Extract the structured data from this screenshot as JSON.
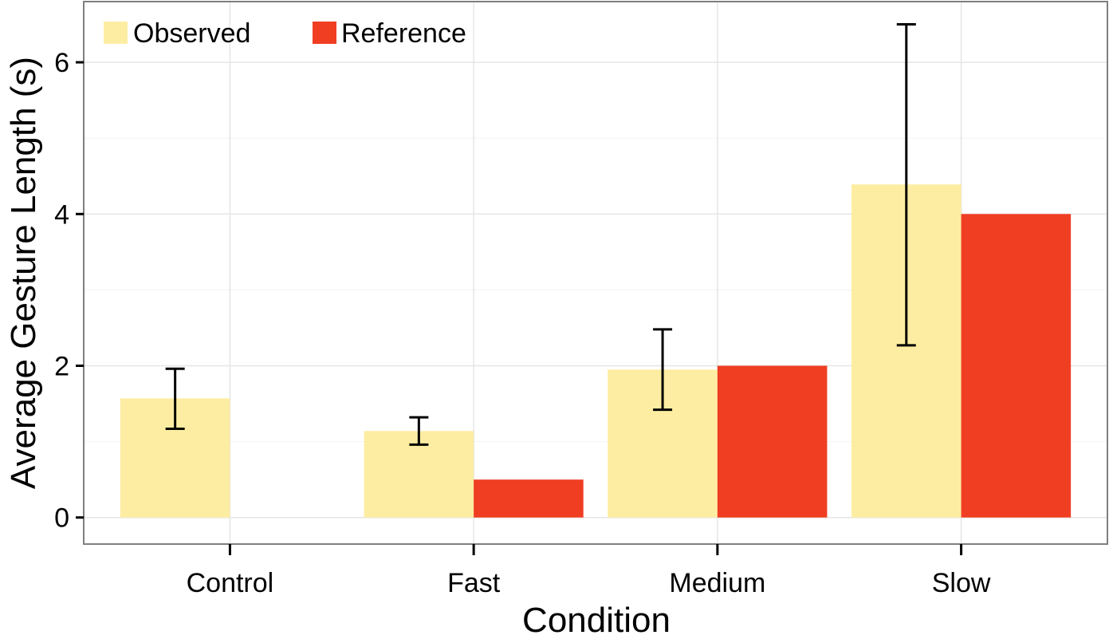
{
  "chart_data": {
    "type": "bar",
    "title": "",
    "xlabel": "Condition",
    "ylabel": "Average Gesture Length (s)",
    "categories": [
      "Control",
      "Fast",
      "Medium",
      "Slow"
    ],
    "series": [
      {
        "name": "Observed",
        "color": "#FDEDA2",
        "values": [
          1.57,
          1.14,
          1.95,
          4.39
        ],
        "error_low": [
          1.17,
          0.96,
          1.42,
          2.27
        ],
        "error_high": [
          1.96,
          1.32,
          2.48,
          6.5
        ]
      },
      {
        "name": "Reference",
        "color": "#F03E23",
        "values": [
          null,
          0.5,
          2.0,
          4.0
        ]
      }
    ],
    "ylim": [
      -0.35,
      6.8
    ],
    "yticks": [
      "0",
      "2",
      "4",
      "6"
    ],
    "grid": true,
    "legend_position": "top-left"
  }
}
